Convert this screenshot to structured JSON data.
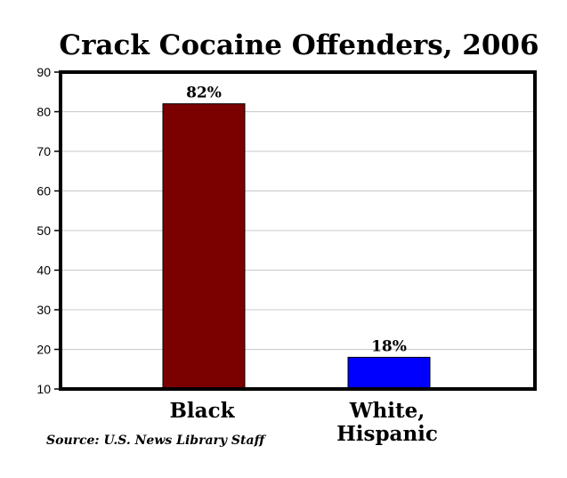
{
  "chart_data": {
    "type": "bar",
    "title": "Crack Cocaine Offenders, 2006",
    "categories": [
      "Black",
      "White,\nHispanic"
    ],
    "values": [
      82,
      18
    ],
    "data_labels": [
      "82%",
      "18%"
    ],
    "colors": [
      "#7b0000",
      "#0000ff"
    ],
    "ylim": [
      10,
      90
    ],
    "yticks": [
      10,
      20,
      30,
      40,
      50,
      60,
      70,
      80,
      90
    ],
    "grid": true,
    "xlabel": "",
    "ylabel": ""
  },
  "source": "Source:  U.S. News Library Staff"
}
